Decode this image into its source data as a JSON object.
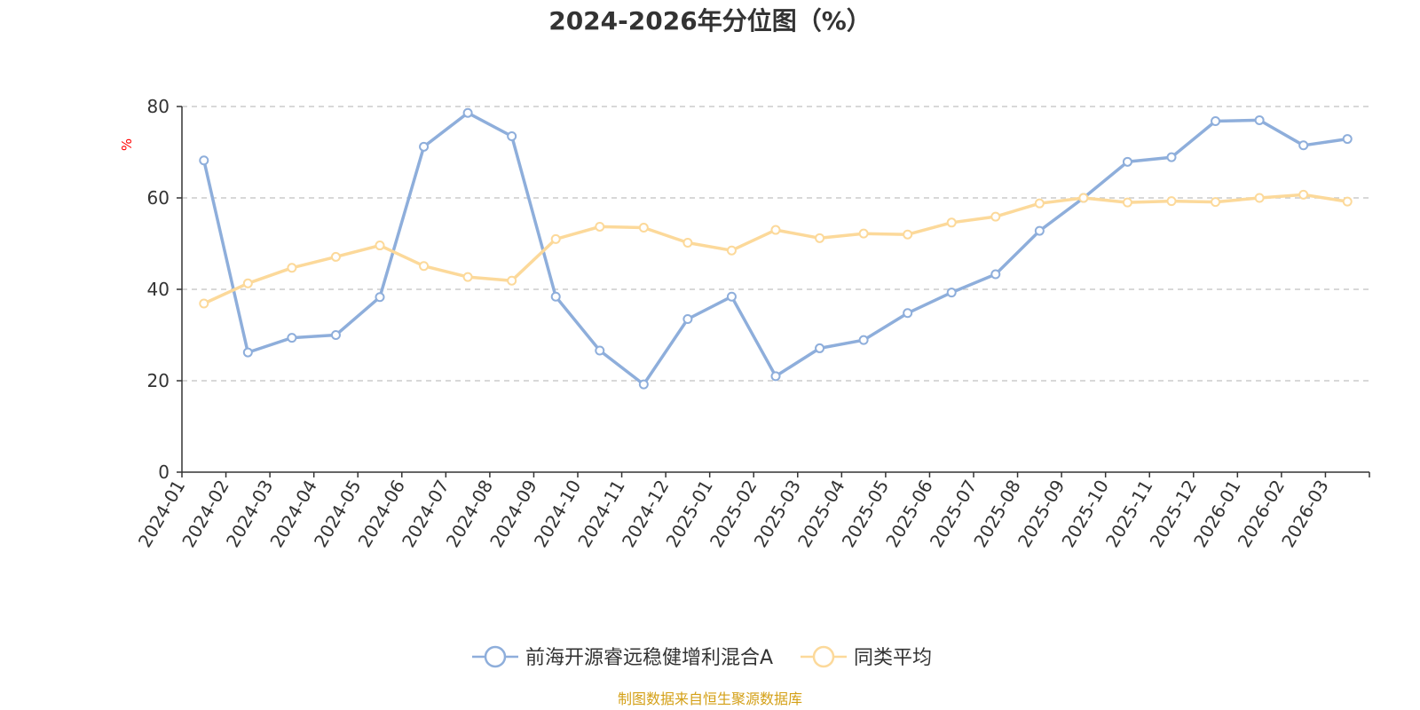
{
  "chart_data": {
    "type": "line",
    "title": "2024-2026年分位图（%）",
    "ylabel": "%",
    "ylim": [
      0,
      80
    ],
    "yticks": [
      0,
      20,
      40,
      60,
      80
    ],
    "grid": true,
    "legend_position": "bottom",
    "categories": [
      "2024-01",
      "2024-02",
      "2024-03",
      "2024-04",
      "2024-05",
      "2024-06",
      "2024-07",
      "2024-08",
      "2024-09",
      "2024-10",
      "2024-11",
      "2024-12",
      "2025-01",
      "2025-02",
      "2025-03",
      "2025-04",
      "2025-05",
      "2025-06",
      "2025-07",
      "2025-08",
      "2025-09",
      "2025-10",
      "2025-11",
      "2025-12",
      "2026-01",
      "2026-02",
      "2026-03"
    ],
    "series": [
      {
        "name": "前海开源睿远稳健增利混合A",
        "color": "#8eaedb",
        "values": [
          68.2,
          26.2,
          29.4,
          30.0,
          38.3,
          71.2,
          78.6,
          73.5,
          38.4,
          26.6,
          19.2,
          33.5,
          38.4,
          21.0,
          27.1,
          28.9,
          34.8,
          39.3,
          43.3,
          52.8,
          60.0,
          67.9,
          68.9,
          76.8,
          77.0,
          71.5,
          72.9
        ]
      },
      {
        "name": "同类平均",
        "color": "#fcd99a",
        "values": [
          36.9,
          41.3,
          44.7,
          47.1,
          49.6,
          45.1,
          42.7,
          41.9,
          51.0,
          53.7,
          53.5,
          50.2,
          48.5,
          53.0,
          51.2,
          52.2,
          52.0,
          54.6,
          55.9,
          58.8,
          60.0,
          59.0,
          59.3,
          59.1,
          60.0,
          60.7,
          59.2
        ]
      }
    ],
    "source_note": "制图数据来自恒生聚源数据库",
    "colors": {
      "axis": "#333333",
      "grid": "#cccccc",
      "unit_label": "#ff0000",
      "source_note": "#d4a017"
    }
  }
}
